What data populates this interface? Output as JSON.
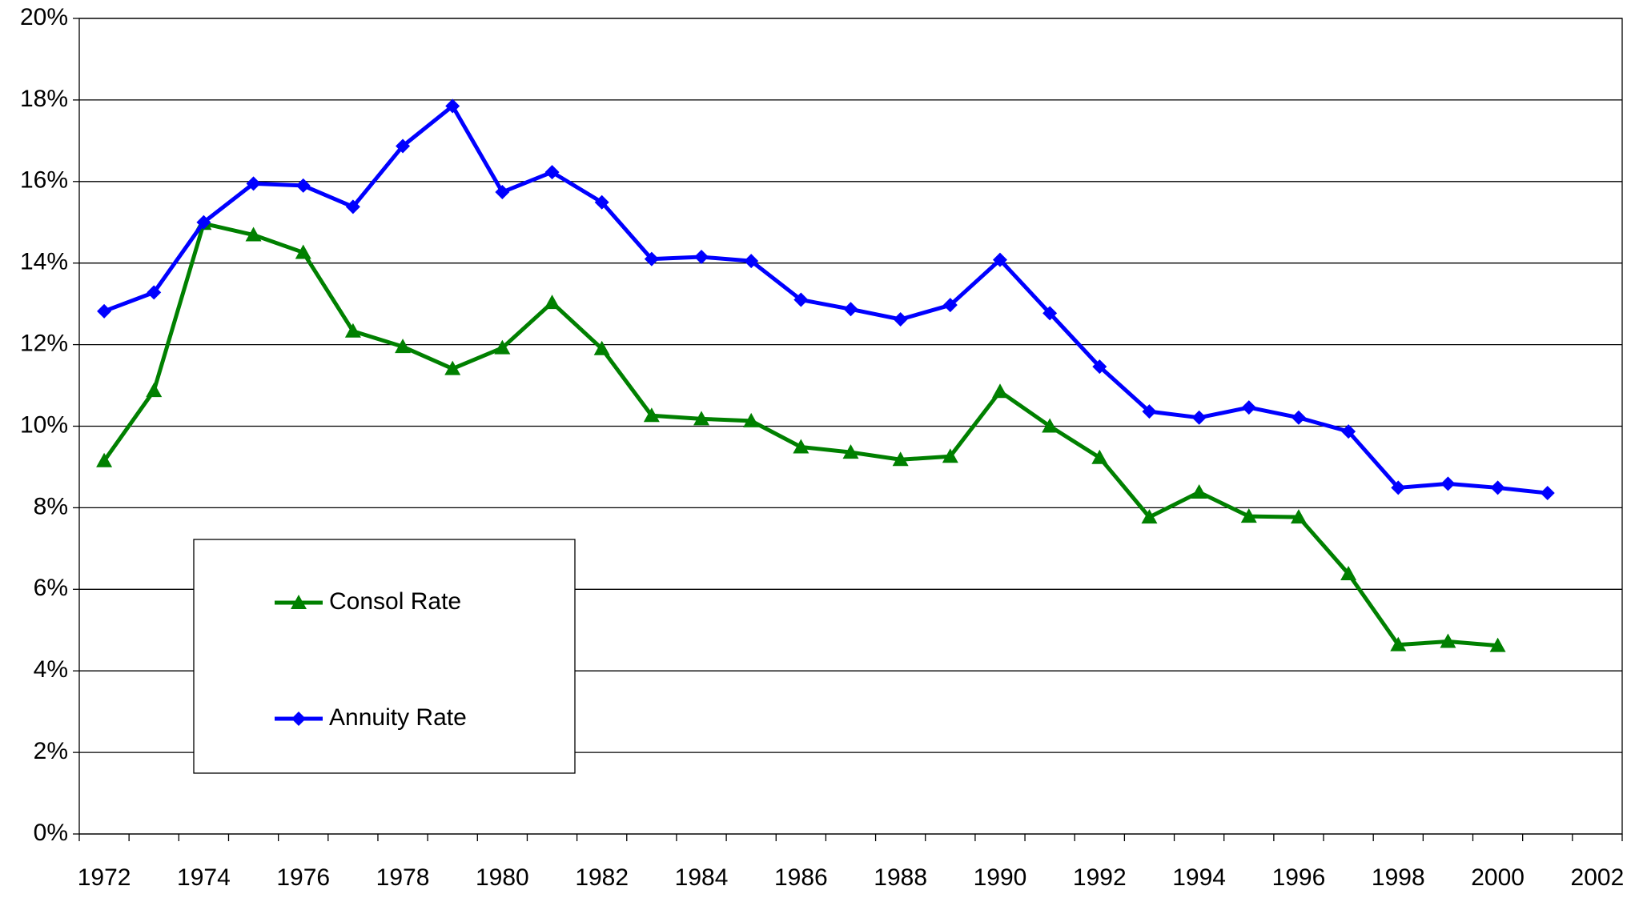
{
  "chart_data": {
    "type": "line",
    "categories": [
      "1972",
      null,
      "1974",
      null,
      "1976",
      null,
      "1978",
      null,
      "1980",
      null,
      "1982",
      null,
      "1984",
      null,
      "1986",
      null,
      "1988",
      null,
      "1990",
      null,
      "1992",
      null,
      "1994",
      null,
      "1996",
      null,
      "1998",
      null,
      "2000",
      null,
      "2002"
    ],
    "series": [
      {
        "name": "Consol Rate",
        "color": "#008000",
        "marker": "triangle",
        "values": [
          9.15,
          10.87,
          14.97,
          14.69,
          14.26,
          12.33,
          11.95,
          11.41,
          11.92,
          13.03,
          11.9,
          10.26,
          10.18,
          10.13,
          9.49,
          9.36,
          9.18,
          9.26,
          10.85,
          10.0,
          9.23,
          7.77,
          8.38,
          7.79,
          7.77,
          6.38,
          4.64,
          4.72,
          4.62,
          null,
          null
        ]
      },
      {
        "name": "Annuity Rate",
        "color": "#0000ff",
        "marker": "diamond",
        "values": [
          12.82,
          13.28,
          15.0,
          15.95,
          15.9,
          15.38,
          16.87,
          17.85,
          15.74,
          16.23,
          15.49,
          14.1,
          14.15,
          14.05,
          13.1,
          12.87,
          12.62,
          12.97,
          14.08,
          12.77,
          11.46,
          10.36,
          10.21,
          10.46,
          10.21,
          9.87,
          8.49,
          8.59,
          8.49,
          8.36,
          null
        ]
      }
    ],
    "ylim": [
      0,
      20
    ],
    "yticks": [
      {
        "value": 0,
        "label": "0%"
      },
      {
        "value": 2,
        "label": "2%"
      },
      {
        "value": 4,
        "label": "4%"
      },
      {
        "value": 6,
        "label": "6%"
      },
      {
        "value": 8,
        "label": "8%"
      },
      {
        "value": 10,
        "label": "10%"
      },
      {
        "value": 12,
        "label": "12%"
      },
      {
        "value": 14,
        "label": "14%"
      },
      {
        "value": 16,
        "label": "16%"
      },
      {
        "value": 18,
        "label": "18%"
      },
      {
        "value": 20,
        "label": "20%"
      }
    ],
    "grid": true
  }
}
